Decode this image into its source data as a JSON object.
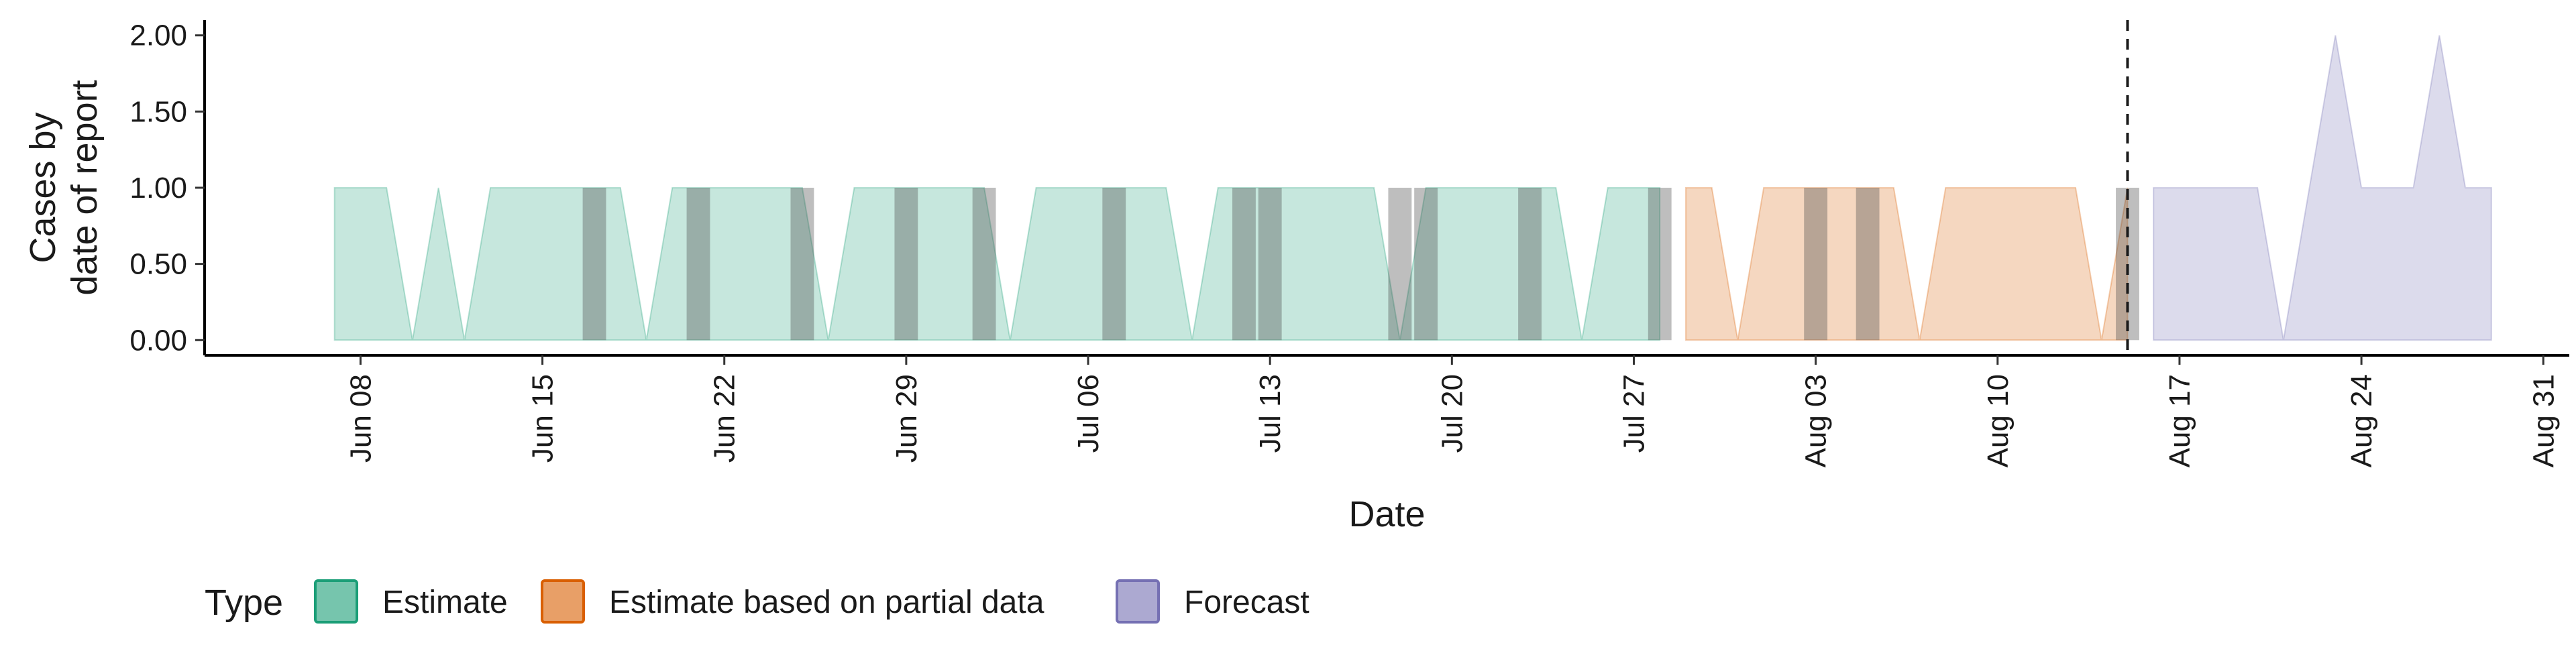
{
  "chart_data": {
    "type": "area",
    "title": "",
    "xlabel": "Date",
    "ylabel_lines": [
      "Cases by",
      "date of report"
    ],
    "ylim": [
      -0.1,
      2.1
    ],
    "xlim": [
      "2020-06-02",
      "2020-09-01"
    ],
    "y_ticks": [
      0.0,
      0.5,
      1.0,
      1.5,
      2.0
    ],
    "y_tick_labels": [
      "0.00",
      "0.50",
      "1.00",
      "1.50",
      "2.00"
    ],
    "x_ticks": [
      "2020-06-08",
      "2020-06-15",
      "2020-06-22",
      "2020-06-29",
      "2020-07-06",
      "2020-07-13",
      "2020-07-20",
      "2020-07-27",
      "2020-08-03",
      "2020-08-10",
      "2020-08-17",
      "2020-08-24",
      "2020-08-31"
    ],
    "x_tick_labels": [
      "Jun 08",
      "Jun 15",
      "Jun 22",
      "Jun 29",
      "Jul 06",
      "Jul 13",
      "Jul 20",
      "Jul 27",
      "Aug 03",
      "Aug 10",
      "Aug 17",
      "Aug 24",
      "Aug 31"
    ],
    "grid": false,
    "legend_position": "bottom",
    "legend_title": "Type",
    "reference_line_date": "2020-08-15",
    "reported_case_dates": [
      "2020-06-17",
      "2020-06-21",
      "2020-06-25",
      "2020-06-29",
      "2020-07-02",
      "2020-07-07",
      "2020-07-12",
      "2020-07-13",
      "2020-07-18",
      "2020-07-19",
      "2020-07-23",
      "2020-07-28",
      "2020-08-03",
      "2020-08-05",
      "2020-08-15"
    ],
    "reported_cases": [
      1,
      1,
      1,
      1,
      1,
      1,
      1,
      1,
      1,
      1,
      1,
      1,
      1,
      1,
      1
    ],
    "series": [
      {
        "name": "Estimate",
        "color": "#1b9e77",
        "dates": [
          "2020-06-07",
          "2020-06-08",
          "2020-06-09",
          "2020-06-10",
          "2020-06-11",
          "2020-06-12",
          "2020-06-13",
          "2020-06-14",
          "2020-06-15",
          "2020-06-16",
          "2020-06-17",
          "2020-06-18",
          "2020-06-19",
          "2020-06-20",
          "2020-06-21",
          "2020-06-22",
          "2020-06-23",
          "2020-06-24",
          "2020-06-25",
          "2020-06-26",
          "2020-06-27",
          "2020-06-28",
          "2020-06-29",
          "2020-06-30",
          "2020-07-01",
          "2020-07-02",
          "2020-07-03",
          "2020-07-04",
          "2020-07-05",
          "2020-07-06",
          "2020-07-07",
          "2020-07-08",
          "2020-07-09",
          "2020-07-10",
          "2020-07-11",
          "2020-07-12",
          "2020-07-13",
          "2020-07-14",
          "2020-07-15",
          "2020-07-16",
          "2020-07-17",
          "2020-07-18",
          "2020-07-19",
          "2020-07-20",
          "2020-07-21",
          "2020-07-22",
          "2020-07-23",
          "2020-07-24",
          "2020-07-25",
          "2020-07-26",
          "2020-07-27",
          "2020-07-28"
        ],
        "values": [
          1,
          1,
          1,
          0,
          1,
          0,
          1,
          1,
          1,
          1,
          1,
          1,
          0,
          1,
          1,
          1,
          1,
          1,
          1,
          0,
          1,
          1,
          1,
          1,
          1,
          1,
          0,
          1,
          1,
          1,
          1,
          1,
          1,
          0,
          1,
          1,
          1,
          1,
          1,
          1,
          1,
          0,
          1,
          1,
          1,
          1,
          1,
          1,
          0,
          1,
          1,
          1
        ]
      },
      {
        "name": "Estimate based on partial data",
        "color": "#d95f02",
        "dates": [
          "2020-07-29",
          "2020-07-30",
          "2020-07-31",
          "2020-08-01",
          "2020-08-02",
          "2020-08-03",
          "2020-08-04",
          "2020-08-05",
          "2020-08-06",
          "2020-08-07",
          "2020-08-08",
          "2020-08-09",
          "2020-08-10",
          "2020-08-11",
          "2020-08-12",
          "2020-08-13",
          "2020-08-14",
          "2020-08-15"
        ],
        "values": [
          1,
          1,
          0,
          1,
          1,
          1,
          1,
          1,
          1,
          0,
          1,
          1,
          1,
          1,
          1,
          1,
          0,
          1
        ]
      },
      {
        "name": "Forecast",
        "color": "#7570b3",
        "dates": [
          "2020-08-16",
          "2020-08-17",
          "2020-08-18",
          "2020-08-19",
          "2020-08-20",
          "2020-08-21",
          "2020-08-22",
          "2020-08-23",
          "2020-08-24",
          "2020-08-25",
          "2020-08-26",
          "2020-08-27",
          "2020-08-28",
          "2020-08-29"
        ],
        "values": [
          1,
          1,
          1,
          1,
          1,
          0,
          1,
          2,
          1,
          1,
          1,
          2,
          1,
          1
        ]
      }
    ]
  }
}
